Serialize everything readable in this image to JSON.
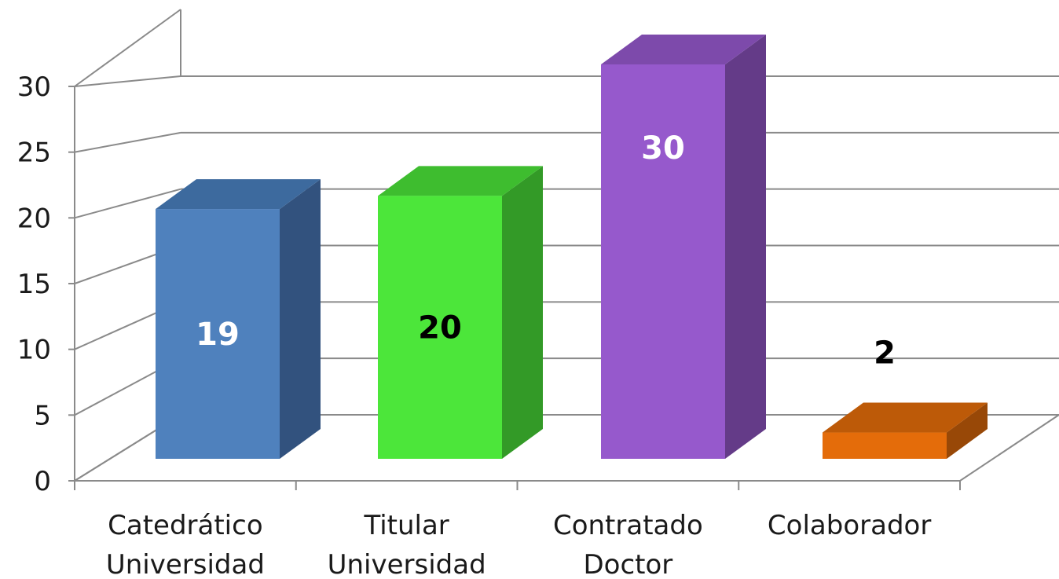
{
  "chart_data": {
    "type": "bar",
    "style": "3d-column",
    "categories": [
      [
        "Catedrático",
        "Universidad"
      ],
      [
        "Titular",
        "Universidad"
      ],
      [
        "Contratado",
        "Doctor"
      ],
      [
        "Colaborador"
      ]
    ],
    "values": [
      19,
      20,
      30,
      2
    ],
    "data_labels": [
      "19",
      "20",
      "30",
      "2"
    ],
    "data_label_position": [
      "inside",
      "inside",
      "inside",
      "above"
    ],
    "data_label_colors": [
      "#ffffff",
      "#000000",
      "#ffffff",
      "#000000"
    ],
    "bar_colors": [
      {
        "front": "#4F81BD",
        "side": "#32527E",
        "top": "#3D6A9E"
      },
      {
        "front": "#4CE63A",
        "side": "#339A27",
        "top": "#3EBD2F"
      },
      {
        "front": "#9659CC",
        "side": "#643B88",
        "top": "#7D4AAB"
      },
      {
        "front": "#E46C0A",
        "side": "#984807",
        "top": "#BD5A08"
      }
    ],
    "ylim": [
      0,
      30
    ],
    "yticks": [
      0,
      5,
      10,
      15,
      20,
      25,
      30
    ],
    "ytick_labels": [
      "0",
      "5",
      "10",
      "15",
      "20",
      "25",
      "30"
    ],
    "grid": true,
    "legend": "none",
    "title": "",
    "xlabel": "",
    "ylabel": ""
  }
}
